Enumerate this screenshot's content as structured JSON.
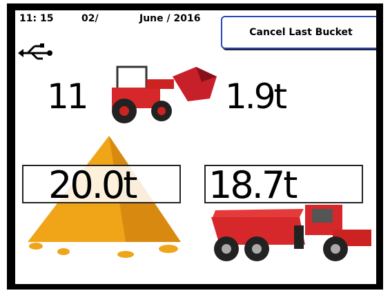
{
  "status_bar": {
    "time": "11: 15",
    "day": "02/",
    "month_year": "June / 2016"
  },
  "button": {
    "label": "Cancel Last Bucket"
  },
  "loader": {
    "bucket_count": "11",
    "bucket_weight": "1.9t"
  },
  "stockpile": {
    "weight": "20.0t"
  },
  "truck": {
    "weight": "18.7t"
  }
}
